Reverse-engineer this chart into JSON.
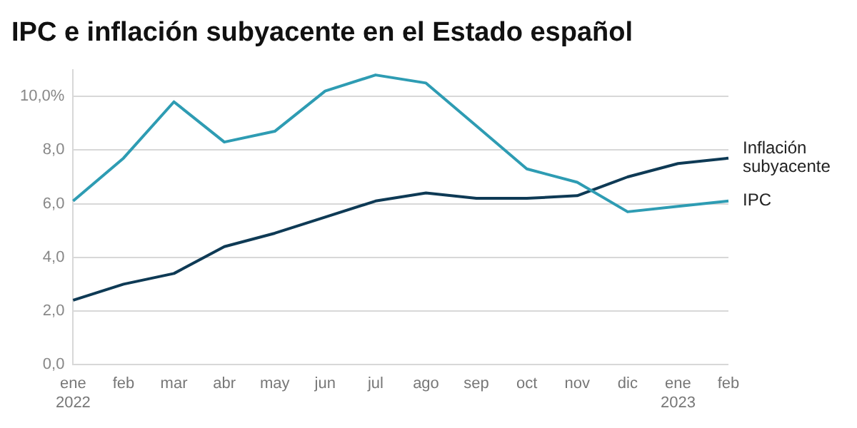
{
  "chart_data": {
    "type": "line",
    "title": "IPC e inflación subyacente en el Estado español",
    "categories": [
      "ene\n2022",
      "feb",
      "mar",
      "abr",
      "may",
      "jun",
      "jul",
      "ago",
      "sep",
      "oct",
      "nov",
      "dic",
      "ene\n2023",
      "feb"
    ],
    "series": [
      {
        "name": "IPC",
        "color": "#2e9cb3",
        "values": [
          6.1,
          7.7,
          9.8,
          8.3,
          8.7,
          10.2,
          10.8,
          10.5,
          8.9,
          7.3,
          6.8,
          5.7,
          5.9,
          6.1
        ]
      },
      {
        "name": "Inflación subyacente",
        "color": "#0e3a55",
        "values": [
          2.4,
          3.0,
          3.4,
          4.4,
          4.9,
          5.5,
          6.1,
          6.4,
          6.2,
          6.2,
          6.3,
          7.0,
          7.5,
          7.7
        ]
      }
    ],
    "ylim": [
      0,
      11
    ],
    "yticks": [
      {
        "value": 0,
        "label": "0,0"
      },
      {
        "value": 2,
        "label": "2,0"
      },
      {
        "value": 4,
        "label": "4,0"
      },
      {
        "value": 6,
        "label": "6,0"
      },
      {
        "value": 8,
        "label": "8,0"
      },
      {
        "value": 10,
        "label": "10,0%"
      }
    ],
    "grid": "y",
    "legend": false,
    "marker": "none",
    "line_style": "solid"
  }
}
